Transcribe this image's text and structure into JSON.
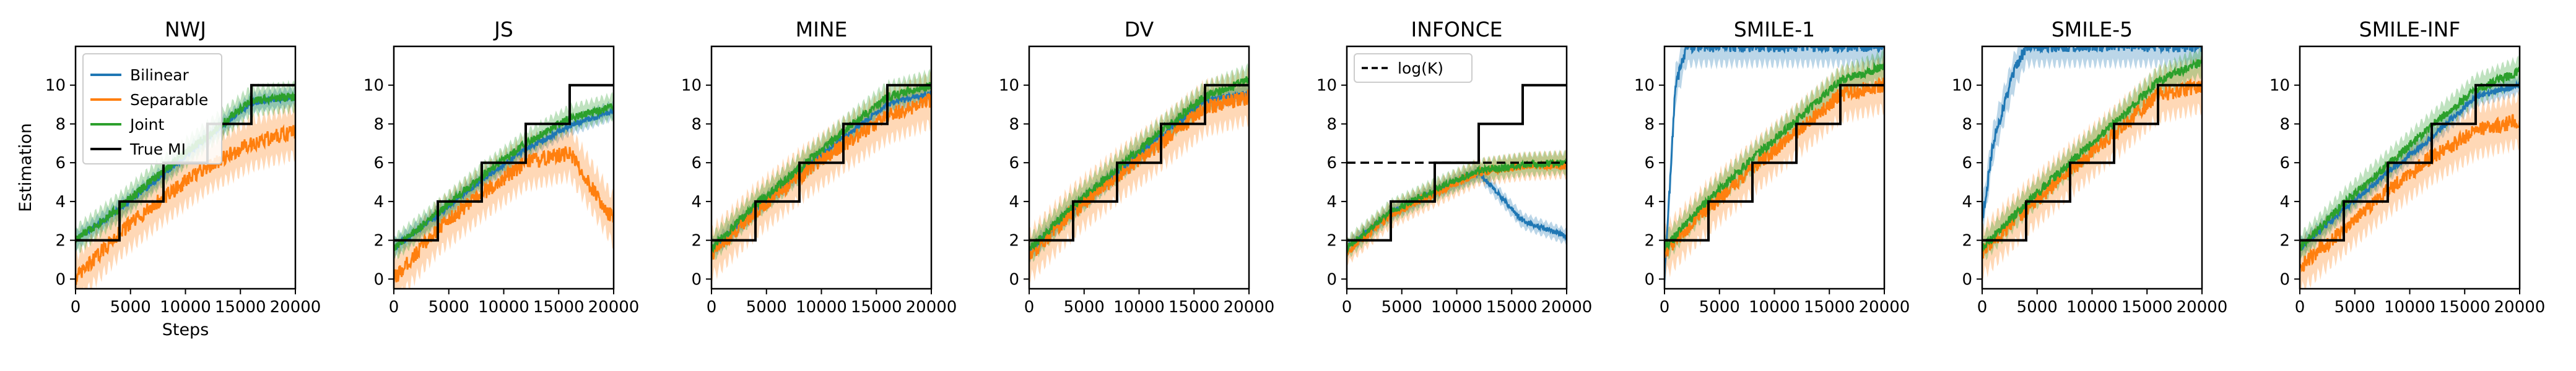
{
  "chart_data": {
    "type": "line",
    "xlabel": "Steps",
    "ylabel": "Estimation",
    "xlim": [
      0,
      20000
    ],
    "ylim": [
      -0.5,
      12
    ],
    "xticks": [
      0,
      5000,
      10000,
      15000,
      20000
    ],
    "yticks": [
      0,
      2,
      4,
      6,
      8,
      10
    ],
    "legend": [
      {
        "label": "Bilinear",
        "color": "#1f77b4",
        "style": "solid"
      },
      {
        "label": "Separable",
        "color": "#ff7f0e",
        "style": "solid"
      },
      {
        "label": "Joint",
        "color": "#2ca02c",
        "style": "solid"
      },
      {
        "label": "True MI",
        "color": "#000000",
        "style": "solid"
      }
    ],
    "true_mi": {
      "x": [
        0,
        4000,
        8000,
        12000,
        16000,
        20000
      ],
      "values": [
        2,
        4,
        6,
        8,
        10,
        10
      ]
    },
    "panels": [
      {
        "title": "NWJ",
        "series": [
          {
            "name": "Bilinear",
            "color": "#1f77b4",
            "x": [
              0,
              4000,
              8000,
              12000,
              16000,
              20000
            ],
            "values": [
              2,
              3.6,
              5.4,
              7.3,
              9.1,
              9.4
            ],
            "band": 0.6
          },
          {
            "name": "Separable",
            "color": "#ff7f0e",
            "x": [
              0,
              4000,
              8000,
              12000,
              16000,
              20000
            ],
            "values": [
              0,
              2.4,
              4.2,
              5.8,
              7.0,
              7.6
            ],
            "band": 1.6
          },
          {
            "name": "Joint",
            "color": "#2ca02c",
            "x": [
              0,
              4000,
              8000,
              12000,
              16000,
              20000
            ],
            "values": [
              2,
              3.7,
              5.6,
              7.4,
              9.2,
              9.4
            ],
            "band": 0.9
          }
        ]
      },
      {
        "title": "JS",
        "series": [
          {
            "name": "Bilinear",
            "color": "#1f77b4",
            "x": [
              0,
              4000,
              8000,
              12000,
              16000,
              20000
            ],
            "values": [
              1.6,
              3.3,
              5.1,
              6.7,
              7.9,
              8.7
            ],
            "band": 0.6
          },
          {
            "name": "Separable",
            "color": "#ff7f0e",
            "x": [
              0,
              4000,
              8000,
              12000,
              16000,
              20000
            ],
            "values": [
              0,
              2.6,
              4.4,
              6.0,
              6.5,
              3.0
            ],
            "band": 1.6
          },
          {
            "name": "Joint",
            "color": "#2ca02c",
            "x": [
              0,
              4000,
              8000,
              12000,
              16000,
              20000
            ],
            "values": [
              1.6,
              3.4,
              5.3,
              7.0,
              8.3,
              8.9
            ],
            "band": 0.8
          }
        ]
      },
      {
        "title": "MINE",
        "series": [
          {
            "name": "Bilinear",
            "color": "#1f77b4",
            "x": [
              0,
              4000,
              8000,
              12000,
              16000,
              20000
            ],
            "values": [
              1.5,
              3.6,
              5.5,
              7.3,
              9.0,
              9.6
            ],
            "band": 0.6
          },
          {
            "name": "Separable",
            "color": "#ff7f0e",
            "x": [
              0,
              4000,
              8000,
              12000,
              16000,
              20000
            ],
            "values": [
              1.3,
              3.5,
              5.3,
              6.9,
              8.4,
              9.2
            ],
            "band": 1.6
          },
          {
            "name": "Joint",
            "color": "#2ca02c",
            "x": [
              0,
              4000,
              8000,
              12000,
              16000,
              20000
            ],
            "values": [
              1.6,
              3.8,
              5.7,
              7.6,
              9.4,
              10.0
            ],
            "band": 0.9
          }
        ]
      },
      {
        "title": "DV",
        "series": [
          {
            "name": "Bilinear",
            "color": "#1f77b4",
            "x": [
              0,
              4000,
              8000,
              12000,
              16000,
              20000
            ],
            "values": [
              1.4,
              3.6,
              5.5,
              7.4,
              9.2,
              9.6
            ],
            "band": 0.6
          },
          {
            "name": "Separable",
            "color": "#ff7f0e",
            "x": [
              0,
              4000,
              8000,
              12000,
              16000,
              20000
            ],
            "values": [
              1.2,
              3.5,
              5.3,
              7.0,
              8.8,
              9.4
            ],
            "band": 1.6
          },
          {
            "name": "Joint",
            "color": "#2ca02c",
            "x": [
              0,
              4000,
              8000,
              12000,
              16000,
              20000
            ],
            "values": [
              1.5,
              3.8,
              5.7,
              7.6,
              9.4,
              10.3
            ],
            "band": 0.9
          }
        ]
      },
      {
        "title": "INFONCE",
        "legend": [
          {
            "label": "log(K)",
            "style": "dashed"
          }
        ],
        "log_k": 6,
        "series": [
          {
            "name": "Bilinear",
            "color": "#1f77b4",
            "x": [
              0,
              4000,
              8000,
              12000,
              16000,
              17000,
              20000
            ],
            "values": [
              1.6,
              3.4,
              4.5,
              5.5,
              3.0,
              2.8,
              2.2
            ],
            "band": 0.5
          },
          {
            "name": "Separable",
            "color": "#ff7f0e",
            "x": [
              0,
              4000,
              8000,
              12000,
              16000,
              20000
            ],
            "values": [
              1.4,
              3.3,
              4.4,
              5.5,
              5.8,
              5.9
            ],
            "band": 0.8
          },
          {
            "name": "Joint",
            "color": "#2ca02c",
            "x": [
              0,
              4000,
              8000,
              12000,
              16000,
              20000
            ],
            "values": [
              1.6,
              3.5,
              4.6,
              5.6,
              5.9,
              6.0
            ],
            "band": 0.7
          }
        ]
      },
      {
        "title": "SMILE-1",
        "series": [
          {
            "name": "Bilinear",
            "color": "#1f77b4",
            "x": [
              0,
              1000,
              2000,
              4000,
              8000,
              12000,
              16000,
              20000
            ],
            "values": [
              0,
              10,
              12,
              12,
              12,
              12,
              12,
              12
            ],
            "band": 1.2
          },
          {
            "name": "Separable",
            "color": "#ff7f0e",
            "x": [
              0,
              4000,
              8000,
              12000,
              16000,
              20000
            ],
            "values": [
              1.4,
              3.7,
              5.7,
              7.6,
              9.5,
              10.0
            ],
            "band": 1.6
          },
          {
            "name": "Joint",
            "color": "#2ca02c",
            "x": [
              0,
              4000,
              8000,
              12000,
              16000,
              20000
            ],
            "values": [
              1.6,
              4.1,
              6.2,
              8.2,
              10.2,
              11.0
            ],
            "band": 0.9
          }
        ]
      },
      {
        "title": "SMILE-5",
        "series": [
          {
            "name": "Bilinear",
            "color": "#1f77b4",
            "x": [
              0,
              1000,
              2000,
              3000,
              4000,
              8000,
              12000,
              16000,
              20000
            ],
            "values": [
              3,
              7,
              9,
              10.8,
              12,
              12,
              12,
              12,
              12
            ],
            "band": 1.2
          },
          {
            "name": "Separable",
            "color": "#ff7f0e",
            "x": [
              0,
              4000,
              8000,
              12000,
              16000,
              20000
            ],
            "values": [
              1.4,
              3.6,
              5.6,
              7.5,
              9.5,
              10.0
            ],
            "band": 1.6
          },
          {
            "name": "Joint",
            "color": "#2ca02c",
            "x": [
              0,
              4000,
              8000,
              12000,
              16000,
              20000
            ],
            "values": [
              1.6,
              3.9,
              6.0,
              8.0,
              10.2,
              11.2
            ],
            "band": 0.9
          }
        ]
      },
      {
        "title": "SMILE-INF",
        "series": [
          {
            "name": "Bilinear",
            "color": "#1f77b4",
            "x": [
              0,
              4000,
              8000,
              12000,
              16000,
              20000
            ],
            "values": [
              1.6,
              3.6,
              5.5,
              7.3,
              9.4,
              10.0
            ],
            "band": 0.6
          },
          {
            "name": "Separable",
            "color": "#ff7f0e",
            "x": [
              0,
              4000,
              8000,
              12000,
              16000,
              20000
            ],
            "values": [
              0.6,
              2.6,
              4.6,
              6.3,
              7.6,
              8.2
            ],
            "band": 1.6
          },
          {
            "name": "Joint",
            "color": "#2ca02c",
            "x": [
              0,
              4000,
              8000,
              12000,
              16000,
              20000
            ],
            "values": [
              1.6,
              3.9,
              5.9,
              7.9,
              9.8,
              10.7
            ],
            "band": 0.9
          }
        ]
      }
    ]
  }
}
